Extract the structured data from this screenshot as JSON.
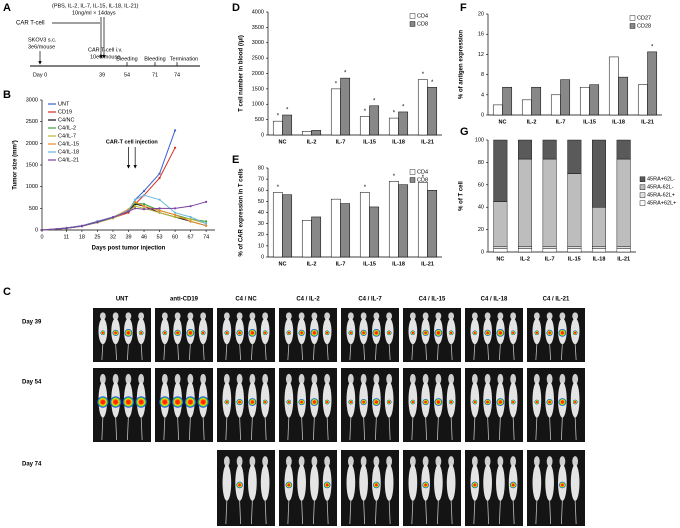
{
  "timeline": {
    "label": "A",
    "cytokines": "(PBS, IL-2, IL-7, IL-15, IL-18, IL-21)",
    "culture": "10ng/ml × 14days",
    "car_t": "CAR T-cell",
    "skov3": "SKOV3  s.c.",
    "skov3_dose": "3e6/mouse",
    "infusion": "CAR T-cell i.v.",
    "infusion_dose": "10e6/mouse",
    "events": [
      "Bleeding",
      "Bleeding",
      "Termination"
    ],
    "days": [
      "Day 0",
      "39",
      "54",
      "71",
      "74"
    ]
  },
  "chart_data": [
    {
      "type": "line",
      "label": "B",
      "y_label": "Tumor size (mm³)",
      "x_label": "Days post tumor injection",
      "annotation": "CAR-T cell injection",
      "x": [
        0,
        11,
        18,
        25,
        32,
        39,
        42,
        46,
        53,
        60,
        67,
        74
      ],
      "xlim": [
        0,
        78
      ],
      "xticks": [
        0,
        11,
        18,
        25,
        32,
        39,
        46,
        53,
        60,
        67,
        74
      ],
      "ylim": [
        0,
        3000
      ],
      "yticks": [
        0,
        500,
        1000,
        1500,
        2000,
        2500,
        3000
      ],
      "grid": false,
      "legend": "upper-left",
      "series": [
        {
          "name": "UNT",
          "color": "#3a5fcd",
          "values": [
            0,
            50,
            100,
            200,
            300,
            450,
            700,
            900,
            1300,
            2300,
            null,
            null
          ]
        },
        {
          "name": "CD19",
          "color": "#d62a1e",
          "values": [
            0,
            40,
            90,
            180,
            280,
            400,
            600,
            800,
            1200,
            1900,
            null,
            null
          ]
        },
        {
          "name": "C4/NC",
          "color": "#111111",
          "values": [
            0,
            40,
            90,
            180,
            280,
            450,
            600,
            550,
            400,
            300,
            200,
            100
          ]
        },
        {
          "name": "C4/IL-2",
          "color": "#3aa040",
          "values": [
            0,
            40,
            90,
            180,
            290,
            470,
            620,
            600,
            450,
            350,
            250,
            200
          ]
        },
        {
          "name": "C4/IL-7",
          "color": "#b8b832",
          "values": [
            0,
            40,
            90,
            170,
            270,
            430,
            550,
            500,
            400,
            300,
            250,
            150
          ]
        },
        {
          "name": "C4/IL-15",
          "color": "#f08a24",
          "values": [
            0,
            40,
            90,
            180,
            290,
            480,
            650,
            550,
            450,
            350,
            200,
            100
          ]
        },
        {
          "name": "C4/IL-18",
          "color": "#6cb8e0",
          "values": [
            0,
            40,
            90,
            180,
            290,
            450,
            700,
            800,
            700,
            400,
            300,
            150
          ]
        },
        {
          "name": "C4/IL-21",
          "color": "#7a3fa0",
          "values": [
            0,
            40,
            90,
            180,
            290,
            430,
            500,
            480,
            500,
            500,
            550,
            650
          ]
        }
      ]
    },
    {
      "type": "bar",
      "label": "D",
      "y_label": "T cell number in blood (/μl)",
      "categories": [
        "NC",
        "IL-2",
        "IL-7",
        "IL-15",
        "IL-18",
        "IL-21"
      ],
      "ylim": [
        0,
        4000
      ],
      "yticks": [
        0,
        500,
        1000,
        1500,
        2000,
        2500,
        3000,
        3500,
        4000
      ],
      "grid": false,
      "legend": "upper-right",
      "series": [
        {
          "name": "CD4",
          "color": "#ffffff",
          "values": [
            450,
            120,
            1500,
            600,
            550,
            1800
          ],
          "significance": [
            "*",
            null,
            "*",
            "*",
            "*",
            "*"
          ]
        },
        {
          "name": "CD8",
          "color": "#888888",
          "values": [
            650,
            150,
            1850,
            950,
            750,
            1550
          ],
          "significance": [
            "*",
            null,
            "*",
            "*",
            "*",
            "*"
          ]
        }
      ]
    },
    {
      "type": "bar",
      "label": "E",
      "y_label": "% of CAR expression in T cells",
      "categories": [
        "NC",
        "IL-2",
        "IL-7",
        "IL-15",
        "IL-18",
        "IL-21"
      ],
      "ylim": [
        0,
        80
      ],
      "yticks": [
        0,
        10,
        20,
        30,
        40,
        50,
        60,
        70,
        80
      ],
      "grid": false,
      "legend": "upper-right",
      "series": [
        {
          "name": "CD4",
          "color": "#ffffff",
          "values": [
            58,
            33,
            52,
            58,
            68,
            67
          ],
          "significance": [
            "*",
            null,
            null,
            "*",
            "*",
            "*"
          ]
        },
        {
          "name": "CD8",
          "color": "#888888",
          "values": [
            56,
            36,
            48,
            45,
            65,
            60
          ],
          "significance": [
            null,
            null,
            null,
            null,
            null,
            null
          ]
        }
      ]
    },
    {
      "type": "bar",
      "label": "F",
      "y_label": "% of antigen expression",
      "categories": [
        "NC",
        "IL-2",
        "IL-7",
        "IL-15",
        "IL-18",
        "IL-21"
      ],
      "ylim": [
        0,
        20
      ],
      "yticks": [
        0,
        4,
        8,
        12,
        16,
        20
      ],
      "grid": false,
      "legend": "upper-right",
      "series": [
        {
          "name": "CD27",
          "color": "#ffffff",
          "values": [
            2,
            3,
            4,
            5.5,
            11.5,
            6
          ],
          "significance": [
            null,
            null,
            null,
            null,
            null,
            null
          ]
        },
        {
          "name": "CD28",
          "color": "#888888",
          "values": [
            5.5,
            5.5,
            7,
            6,
            7.5,
            12.5
          ],
          "significance": [
            null,
            null,
            null,
            null,
            null,
            "*"
          ]
        }
      ]
    },
    {
      "type": "stacked_bar",
      "label": "G",
      "y_label": "% of  T cell",
      "categories": [
        "NC",
        "IL-2",
        "IL-7",
        "IL-15",
        "IL-18",
        "IL-21"
      ],
      "ylim": [
        0,
        100
      ],
      "yticks": [
        0,
        20,
        40,
        60,
        80,
        100
      ],
      "grid": false,
      "legend": "right",
      "series": [
        {
          "name": "45RA+62L+",
          "color": "#ffffff",
          "values": [
            3,
            3,
            3,
            3,
            3,
            3
          ]
        },
        {
          "name": "45RA-62L+",
          "color": "#e2e2e2",
          "values": [
            2,
            2,
            2,
            2,
            2,
            2
          ]
        },
        {
          "name": "45RA-62L-",
          "color": "#bdbdbd",
          "values": [
            40,
            78,
            78,
            65,
            35,
            78
          ]
        },
        {
          "name": "45RA+62L-",
          "color": "#5a5a5a",
          "values": [
            55,
            17,
            17,
            30,
            60,
            17
          ]
        }
      ]
    }
  ],
  "imaging": {
    "label": "C",
    "columns": [
      "UNT",
      "anti-CD19",
      "C4 / NC",
      "C4 / IL-2",
      "C4 / IL-7",
      "C4 / IL-15",
      "C4 / IL-18",
      "C4 / IL-21"
    ],
    "rows": [
      "Day 39",
      "Day 54",
      "Day 74"
    ]
  }
}
